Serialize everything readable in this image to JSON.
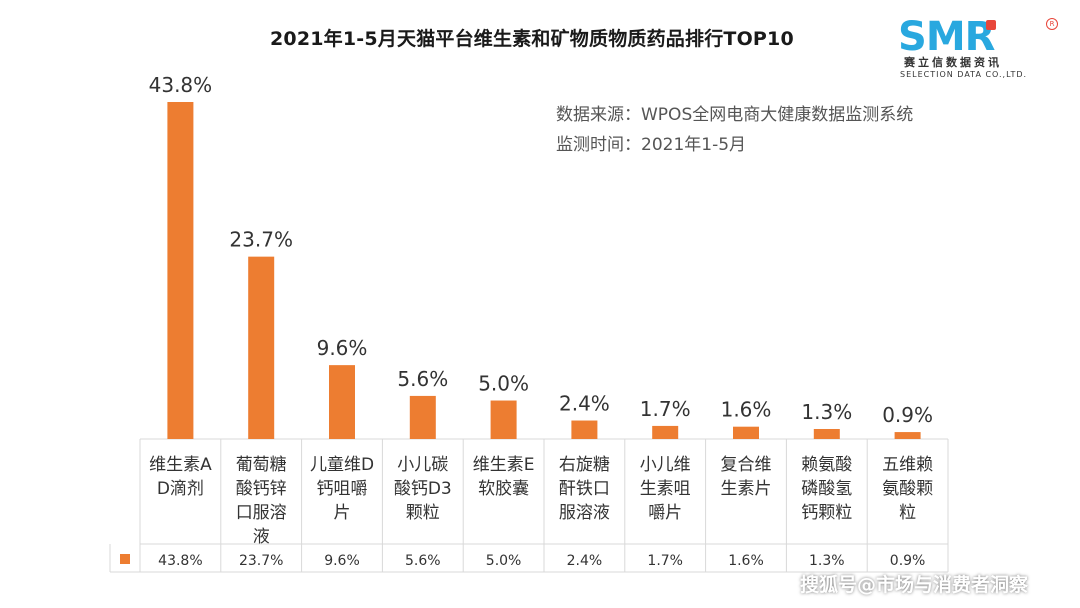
{
  "header": {
    "title": "2021年1-5月天猫平台维生素和矿物质物质药品排行TOP10"
  },
  "logo": {
    "mark": "SMR",
    "reg": "R",
    "cn": "赛立信数据资讯",
    "en": "SELECTION DATA CO.,LTD."
  },
  "source": {
    "line1": "数据来源：WPOS全网电商大健康数据监测系统",
    "line2": "监测时间：2021年1-5月"
  },
  "watermark": "搜狐号@市场与消费者洞察",
  "colors": {
    "bar": "#ed7d31",
    "grid": "#d9d9d9",
    "text": "#333333"
  },
  "chart_data": {
    "type": "bar",
    "title": "2021年1-5月天猫平台维生素和矿物质物质药品排行TOP10",
    "categories": [
      "维生素A\nD滴剂",
      "葡萄糖\n酸钙锌\n口服溶\n液",
      "儿童维D\n钙咀嚼\n片",
      "小儿碳\n酸钙D3\n颗粒",
      "维生素E\n软胶囊",
      "右旋糖\n酐铁口\n服溶液",
      "小儿维\n生素咀\n嚼片",
      "复合维\n生素片",
      "赖氨酸\n磷酸氢\n钙颗粒",
      "五维赖\n氨酸颗\n粒"
    ],
    "values": [
      43.8,
      23.7,
      9.6,
      5.6,
      5.0,
      2.4,
      1.7,
      1.6,
      1.3,
      0.9
    ],
    "data_labels": [
      "43.8%",
      "23.7%",
      "9.6%",
      "5.6%",
      "5.0%",
      "2.4%",
      "1.7%",
      "1.6%",
      "1.3%",
      "0.9%"
    ],
    "ylim": [
      0,
      45
    ],
    "grid": false,
    "legend": "data-table-left",
    "xlabel": "",
    "ylabel": ""
  }
}
